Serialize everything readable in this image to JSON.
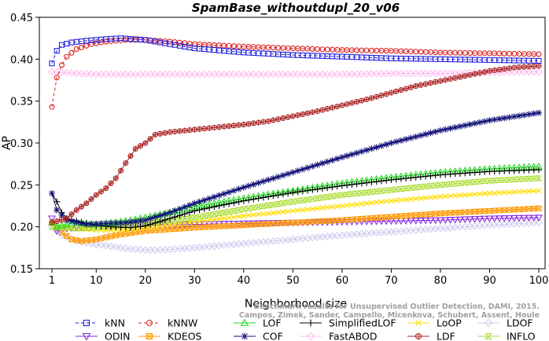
{
  "chart_data": {
    "type": "line",
    "title": "SpamBase_withoutdupl_20_v06",
    "xlabel": "Neighborhood size",
    "ylabel": "AP",
    "xlim": [
      1,
      100
    ],
    "ylim": [
      0.15,
      0.45
    ],
    "xticks": [
      1,
      10,
      20,
      30,
      40,
      50,
      60,
      70,
      80,
      90,
      100
    ],
    "yticks": [
      0.15,
      0.2,
      0.25,
      0.3,
      0.35,
      0.4,
      0.45
    ],
    "ytick_labels": [
      "0.15",
      "0.20",
      "0.25",
      "0.30",
      "0.35",
      "0.40",
      "0.45"
    ],
    "grid": false,
    "legend_position": "bottom",
    "watermark": [
      "Benchmark results for Unsupervised Outlier Detection, DAMI, 2015.",
      "Campos, Zimek, Sander, Campello, Micenkova, Schubert, Assent, Houle"
    ],
    "series": [
      {
        "name": "kNN",
        "color": "#2222dd",
        "marker": "square",
        "dashed": true,
        "points": [
          [
            1,
            0.395
          ],
          [
            2,
            0.41
          ],
          [
            3,
            0.417
          ],
          [
            5,
            0.42
          ],
          [
            8,
            0.422
          ],
          [
            12,
            0.424
          ],
          [
            15,
            0.425
          ],
          [
            20,
            0.423
          ],
          [
            25,
            0.418
          ],
          [
            30,
            0.413
          ],
          [
            40,
            0.408
          ],
          [
            50,
            0.405
          ],
          [
            60,
            0.403
          ],
          [
            70,
            0.401
          ],
          [
            80,
            0.4
          ],
          [
            90,
            0.399
          ],
          [
            100,
            0.398
          ]
        ]
      },
      {
        "name": "kNNW",
        "color": "#dd2222",
        "marker": "circle",
        "dashed": true,
        "points": [
          [
            1,
            0.343
          ],
          [
            2,
            0.378
          ],
          [
            3,
            0.393
          ],
          [
            4,
            0.403
          ],
          [
            6,
            0.412
          ],
          [
            9,
            0.418
          ],
          [
            12,
            0.421
          ],
          [
            16,
            0.423
          ],
          [
            20,
            0.423
          ],
          [
            25,
            0.421
          ],
          [
            30,
            0.418
          ],
          [
            40,
            0.415
          ],
          [
            50,
            0.413
          ],
          [
            60,
            0.411
          ],
          [
            70,
            0.41
          ],
          [
            80,
            0.408
          ],
          [
            90,
            0.407
          ],
          [
            100,
            0.406
          ]
        ]
      },
      {
        "name": "LOF",
        "color": "#22dd22",
        "marker": "triangle",
        "dashed": false,
        "points": [
          [
            1,
            0.205
          ],
          [
            2,
            0.2
          ],
          [
            4,
            0.203
          ],
          [
            6,
            0.205
          ],
          [
            10,
            0.203
          ],
          [
            15,
            0.206
          ],
          [
            20,
            0.211
          ],
          [
            25,
            0.217
          ],
          [
            30,
            0.224
          ],
          [
            40,
            0.234
          ],
          [
            50,
            0.243
          ],
          [
            60,
            0.252
          ],
          [
            70,
            0.259
          ],
          [
            80,
            0.265
          ],
          [
            90,
            0.269
          ],
          [
            100,
            0.272
          ]
        ]
      },
      {
        "name": "SimplifiedLOF",
        "color": "#000000",
        "marker": "plus",
        "dashed": false,
        "points": [
          [
            1,
            0.24
          ],
          [
            2,
            0.23
          ],
          [
            3,
            0.217
          ],
          [
            4,
            0.21
          ],
          [
            6,
            0.207
          ],
          [
            8,
            0.204
          ],
          [
            10,
            0.202
          ],
          [
            13,
            0.2
          ],
          [
            17,
            0.199
          ],
          [
            20,
            0.201
          ],
          [
            25,
            0.21
          ],
          [
            30,
            0.219
          ],
          [
            40,
            0.231
          ],
          [
            50,
            0.241
          ],
          [
            60,
            0.249
          ],
          [
            70,
            0.256
          ],
          [
            80,
            0.262
          ],
          [
            90,
            0.266
          ],
          [
            100,
            0.268
          ]
        ]
      },
      {
        "name": "LoOP",
        "color": "#ffdd00",
        "marker": "x",
        "dashed": false,
        "points": [
          [
            1,
            0.205
          ],
          [
            3,
            0.2
          ],
          [
            6,
            0.198
          ],
          [
            10,
            0.196
          ],
          [
            15,
            0.196
          ],
          [
            20,
            0.199
          ],
          [
            30,
            0.206
          ],
          [
            40,
            0.213
          ],
          [
            50,
            0.219
          ],
          [
            60,
            0.225
          ],
          [
            70,
            0.231
          ],
          [
            80,
            0.236
          ],
          [
            90,
            0.24
          ],
          [
            100,
            0.243
          ]
        ]
      },
      {
        "name": "LDOF",
        "color": "#ccccee",
        "marker": "diamond",
        "dashed": false,
        "points": [
          [
            1,
            0.2
          ],
          [
            3,
            0.19
          ],
          [
            6,
            0.183
          ],
          [
            10,
            0.179
          ],
          [
            15,
            0.175
          ],
          [
            20,
            0.172
          ],
          [
            25,
            0.173
          ],
          [
            30,
            0.175
          ],
          [
            40,
            0.18
          ],
          [
            50,
            0.185
          ],
          [
            60,
            0.19
          ],
          [
            70,
            0.194
          ],
          [
            80,
            0.198
          ],
          [
            90,
            0.202
          ],
          [
            100,
            0.205
          ]
        ]
      },
      {
        "name": "ODIN",
        "color": "#8a2be2",
        "marker": "triangle-down",
        "dashed": false,
        "points": [
          [
            1,
            0.21
          ],
          [
            2,
            0.195
          ],
          [
            4,
            0.198
          ],
          [
            8,
            0.2
          ],
          [
            12,
            0.201
          ],
          [
            20,
            0.202
          ],
          [
            30,
            0.203
          ],
          [
            40,
            0.204
          ],
          [
            50,
            0.205
          ],
          [
            60,
            0.206
          ],
          [
            70,
            0.207
          ],
          [
            80,
            0.208
          ],
          [
            90,
            0.21
          ],
          [
            100,
            0.211
          ]
        ]
      },
      {
        "name": "KDEOS",
        "color": "#ff9900",
        "marker": "square-x",
        "dashed": false,
        "points": [
          [
            1,
            0.205
          ],
          [
            3,
            0.193
          ],
          [
            5,
            0.185
          ],
          [
            7,
            0.183
          ],
          [
            10,
            0.185
          ],
          [
            15,
            0.191
          ],
          [
            20,
            0.195
          ],
          [
            30,
            0.199
          ],
          [
            40,
            0.202
          ],
          [
            50,
            0.205
          ],
          [
            60,
            0.208
          ],
          [
            70,
            0.212
          ],
          [
            80,
            0.216
          ],
          [
            90,
            0.219
          ],
          [
            100,
            0.222
          ]
        ]
      },
      {
        "name": "COF",
        "color": "#111177",
        "marker": "star",
        "dashed": false,
        "points": [
          [
            1,
            0.24
          ],
          [
            2,
            0.22
          ],
          [
            4,
            0.208
          ],
          [
            8,
            0.203
          ],
          [
            12,
            0.204
          ],
          [
            16,
            0.205
          ],
          [
            20,
            0.208
          ],
          [
            25,
            0.217
          ],
          [
            30,
            0.228
          ],
          [
            40,
            0.247
          ],
          [
            50,
            0.265
          ],
          [
            60,
            0.283
          ],
          [
            70,
            0.3
          ],
          [
            80,
            0.315
          ],
          [
            90,
            0.327
          ],
          [
            100,
            0.336
          ]
        ]
      },
      {
        "name": "FastABOD",
        "color": "#ffbbee",
        "marker": "diamond",
        "dashed": false,
        "points": [
          [
            1,
            0.385
          ],
          [
            3,
            0.384
          ],
          [
            10,
            0.382
          ],
          [
            20,
            0.382
          ],
          [
            30,
            0.382
          ],
          [
            40,
            0.382
          ],
          [
            50,
            0.382
          ],
          [
            60,
            0.382
          ],
          [
            70,
            0.383
          ],
          [
            80,
            0.383
          ],
          [
            90,
            0.384
          ],
          [
            100,
            0.385
          ]
        ]
      },
      {
        "name": "LDF",
        "color": "#aa2222",
        "marker": "circle-plus",
        "dashed": false,
        "points": [
          [
            1,
            0.205
          ],
          [
            4,
            0.21
          ],
          [
            6,
            0.22
          ],
          [
            8,
            0.228
          ],
          [
            10,
            0.238
          ],
          [
            12,
            0.246
          ],
          [
            14,
            0.258
          ],
          [
            16,
            0.276
          ],
          [
            18,
            0.293
          ],
          [
            20,
            0.3
          ],
          [
            22,
            0.31
          ],
          [
            25,
            0.313
          ],
          [
            30,
            0.316
          ],
          [
            35,
            0.319
          ],
          [
            40,
            0.322
          ],
          [
            45,
            0.326
          ],
          [
            50,
            0.332
          ],
          [
            55,
            0.338
          ],
          [
            60,
            0.345
          ],
          [
            65,
            0.352
          ],
          [
            70,
            0.36
          ],
          [
            75,
            0.368
          ],
          [
            80,
            0.374
          ],
          [
            85,
            0.38
          ],
          [
            90,
            0.386
          ],
          [
            95,
            0.39
          ],
          [
            100,
            0.392
          ]
        ]
      },
      {
        "name": "INFLO",
        "color": "#aadd33",
        "marker": "hourglass",
        "dashed": false,
        "points": [
          [
            1,
            0.2
          ],
          [
            3,
            0.199
          ],
          [
            6,
            0.198
          ],
          [
            10,
            0.199
          ],
          [
            15,
            0.201
          ],
          [
            20,
            0.204
          ],
          [
            30,
            0.211
          ],
          [
            40,
            0.221
          ],
          [
            50,
            0.23
          ],
          [
            60,
            0.238
          ],
          [
            70,
            0.244
          ],
          [
            80,
            0.25
          ],
          [
            90,
            0.255
          ],
          [
            100,
            0.258
          ]
        ]
      }
    ]
  }
}
